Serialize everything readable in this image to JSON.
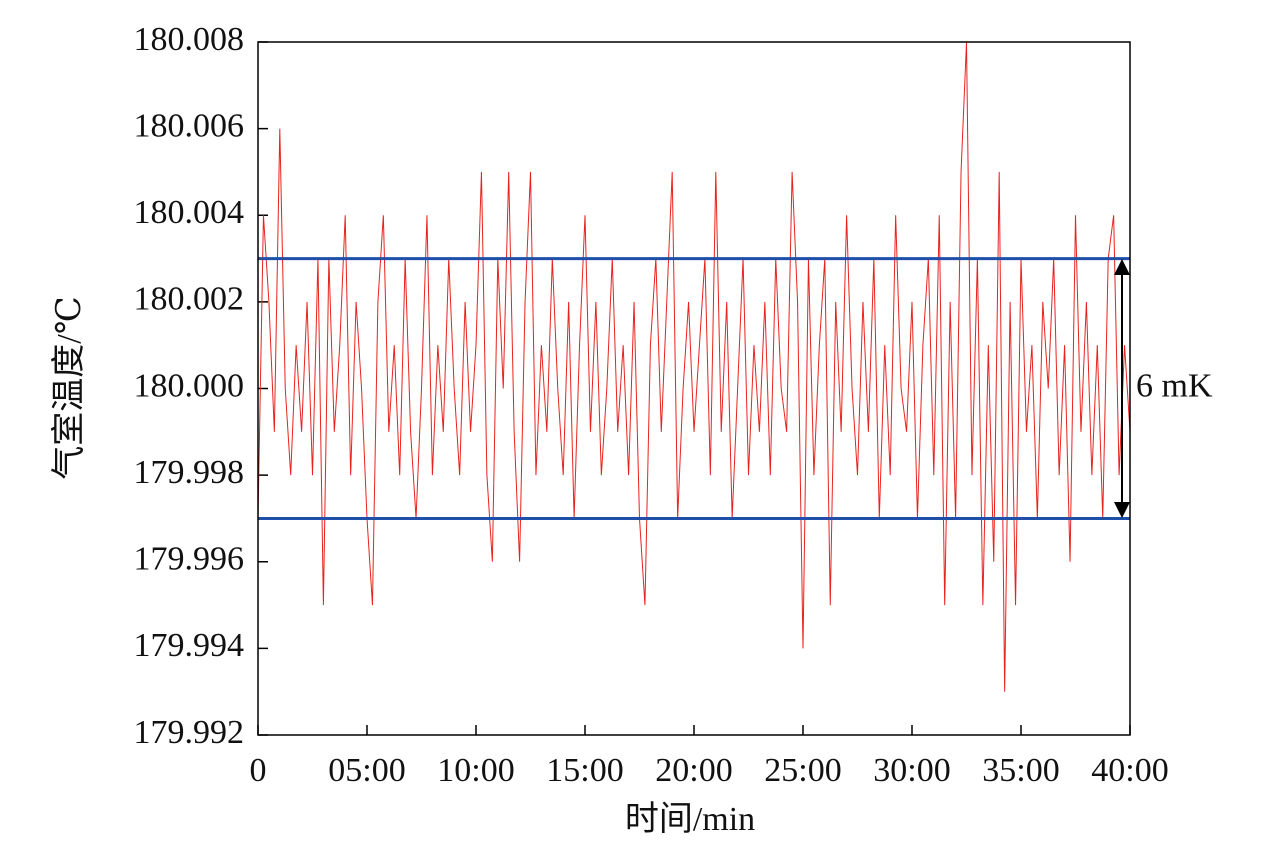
{
  "chart_data": {
    "type": "line",
    "ylabel": "气室温度/℃",
    "xlabel": "时间/min",
    "xlim": [
      0,
      40
    ],
    "ylim": [
      179.992,
      180.008
    ],
    "xticks": [
      0,
      {
        "value": 5,
        "label": "05:00"
      },
      {
        "value": 10,
        "label": "10:00"
      },
      {
        "value": 15,
        "label": "15:00"
      },
      {
        "value": 20,
        "label": "20:00"
      },
      {
        "value": 25,
        "label": "25:00"
      },
      {
        "value": 30,
        "label": "30:00"
      },
      {
        "value": 35,
        "label": "35:00"
      },
      {
        "value": 40,
        "label": "40:00"
      }
    ],
    "yticks": [
      179.992,
      179.994,
      179.996,
      179.998,
      {
        "value": 180,
        "label": "180.000"
      },
      180.002,
      180.004,
      180.006,
      180.008
    ],
    "hlines": [
      {
        "value": 180.003,
        "color": "#1f4fa8"
      },
      {
        "value": 179.997,
        "color": "#1f4fa8"
      }
    ],
    "annotation": "6 mK",
    "x": [
      0,
      0.25,
      0.5,
      0.75,
      1,
      1.25,
      1.5,
      1.75,
      2,
      2.25,
      2.5,
      2.75,
      3,
      3.25,
      3.5,
      3.75,
      4,
      4.25,
      4.5,
      4.75,
      5,
      5.25,
      5.5,
      5.75,
      6,
      6.25,
      6.5,
      6.75,
      7,
      7.25,
      7.5,
      7.75,
      8,
      8.25,
      8.5,
      8.75,
      9,
      9.25,
      9.5,
      9.75,
      10,
      10.25,
      10.5,
      10.75,
      11,
      11.25,
      11.5,
      11.75,
      12,
      12.25,
      12.5,
      12.75,
      13,
      13.25,
      13.5,
      13.75,
      14,
      14.25,
      14.5,
      14.75,
      15,
      15.25,
      15.5,
      15.75,
      16,
      16.25,
      16.5,
      16.75,
      17,
      17.25,
      17.5,
      17.75,
      18,
      18.25,
      18.5,
      18.75,
      19,
      19.25,
      19.5,
      19.75,
      20,
      20.25,
      20.5,
      20.75,
      21,
      21.25,
      21.5,
      21.75,
      22,
      22.25,
      22.5,
      22.75,
      23,
      23.25,
      23.5,
      23.75,
      24,
      24.25,
      24.5,
      24.75,
      25,
      25.25,
      25.5,
      25.75,
      26,
      26.25,
      26.5,
      26.75,
      27,
      27.25,
      27.5,
      27.75,
      28,
      28.25,
      28.5,
      28.75,
      29,
      29.25,
      29.5,
      29.75,
      30,
      30.25,
      30.5,
      30.75,
      31,
      31.25,
      31.5,
      31.75,
      32,
      32.25,
      32.5,
      32.75,
      33,
      33.25,
      33.5,
      33.75,
      34,
      34.25,
      34.5,
      34.75,
      35,
      35.25,
      35.5,
      35.75,
      36,
      36.25,
      36.5,
      36.75,
      37,
      37.25,
      37.5,
      37.75,
      38,
      38.25,
      38.5,
      38.75,
      39,
      39.25,
      39.5,
      39.75,
      40
    ],
    "series": [
      {
        "color": "#e8231f",
        "values": [
          179.997,
          180.004,
          180.002,
          179.999,
          180.006,
          180,
          179.998,
          180.001,
          179.999,
          180.002,
          179.998,
          180.003,
          179.995,
          180.003,
          179.999,
          180.001,
          180.004,
          179.998,
          180.002,
          180,
          179.997,
          179.995,
          180.002,
          180.004,
          179.999,
          180.001,
          179.998,
          180.003,
          179.999,
          179.997,
          180,
          180.004,
          179.998,
          180.001,
          179.999,
          180.003,
          180,
          179.998,
          180.002,
          179.999,
          180.001,
          180.005,
          179.998,
          179.996,
          180.003,
          180,
          180.005,
          179.999,
          179.996,
          180.002,
          180.005,
          179.998,
          180.001,
          179.999,
          180.003,
          180,
          179.998,
          180.002,
          179.997,
          180.001,
          180.004,
          179.999,
          180.002,
          179.998,
          180,
          180.003,
          179.999,
          180.001,
          179.998,
          180.002,
          179.997,
          179.995,
          180.001,
          180.003,
          179.999,
          180.002,
          180.005,
          179.997,
          180,
          180.002,
          179.999,
          180.001,
          180.003,
          179.998,
          180.005,
          179.999,
          180.002,
          179.997,
          180,
          180.003,
          179.998,
          180.001,
          179.999,
          180.002,
          179.998,
          180.003,
          180,
          179.999,
          180.005,
          180.002,
          179.994,
          180.003,
          179.998,
          180.001,
          180.003,
          179.995,
          180.002,
          179.999,
          180.004,
          180,
          179.998,
          180.002,
          179.999,
          180.003,
          179.997,
          180.001,
          179.998,
          180.004,
          180,
          179.999,
          180.002,
          179.997,
          180.001,
          180.003,
          179.998,
          180.004,
          179.995,
          180.002,
          179.997,
          180.005,
          180.008,
          179.998,
          180.003,
          179.995,
          180.001,
          179.996,
          180.005,
          179.993,
          180.002,
          179.995,
          180.003,
          179.999,
          180.001,
          179.997,
          180.002,
          180,
          180.003,
          179.998,
          180.001,
          179.996,
          180.004,
          179.999,
          180.002,
          179.998,
          180.001,
          179.997,
          180.003,
          180.004,
          179.998,
          180.001,
          179.999
        ]
      }
    ]
  }
}
